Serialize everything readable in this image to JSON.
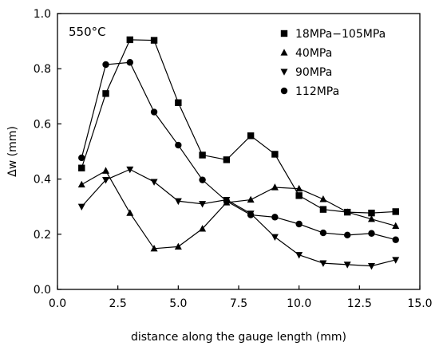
{
  "chart_data": {
    "type": "line",
    "annotation": "550°C",
    "xlabel": "distance along the gauge length  (mm)",
    "ylabel": "Δw (mm)",
    "xlim": [
      0,
      15
    ],
    "ylim": [
      0,
      1
    ],
    "x_ticks": [
      "0.0",
      "2.5",
      "5.0",
      "7.5",
      "10.0",
      "12.5",
      "15.0"
    ],
    "y_ticks": [
      "0.0",
      "0.2",
      "0.4",
      "0.6",
      "0.8",
      "1.0"
    ],
    "grid": false,
    "legend_position": "top-right",
    "x": [
      1,
      2,
      3,
      4,
      5,
      6,
      7,
      8,
      9,
      10,
      11,
      12,
      13,
      14
    ],
    "series": [
      {
        "name": "18MPa−105MPa",
        "marker": "square",
        "values": [
          0.44,
          0.71,
          0.905,
          0.903,
          0.677,
          0.487,
          0.47,
          0.557,
          0.49,
          0.34,
          0.29,
          0.28,
          0.277,
          0.282
        ]
      },
      {
        "name": "40MPa",
        "marker": "triangle-up",
        "values": [
          0.38,
          0.43,
          0.277,
          0.148,
          0.155,
          0.22,
          0.315,
          0.325,
          0.37,
          0.365,
          0.327,
          0.28,
          0.255,
          0.23
        ]
      },
      {
        "name": "90MPa",
        "marker": "triangle-down",
        "values": [
          0.3,
          0.397,
          0.435,
          0.39,
          0.32,
          0.31,
          0.325,
          0.275,
          0.19,
          0.125,
          0.095,
          0.09,
          0.085,
          0.107
        ]
      },
      {
        "name": "112MPa",
        "marker": "circle",
        "values": [
          0.477,
          0.815,
          0.823,
          0.643,
          0.523,
          0.397,
          0.32,
          0.27,
          0.262,
          0.237,
          0.205,
          0.197,
          0.203,
          0.18
        ]
      }
    ]
  }
}
